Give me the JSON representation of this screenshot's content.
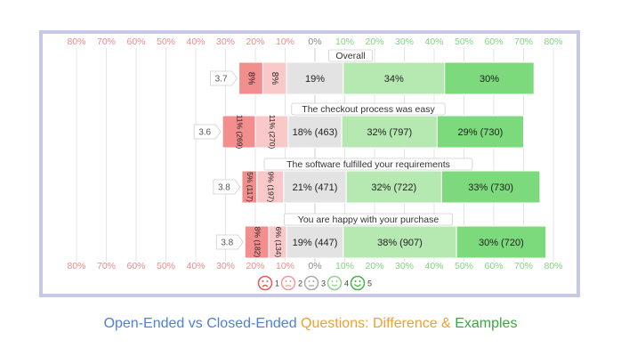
{
  "caption": {
    "part1": "Open-Ended vs Closed-Ended",
    "part2": "Questions: Difference &",
    "part3": "Examples"
  },
  "colors": {
    "neg": "#f27f7f",
    "neg_tick": "#ee8a8a",
    "pos_tick": "#7ed47e",
    "neutral_tick": "#888888",
    "s1": "#f28e8e",
    "s2": "#f9c9c9",
    "s3": "#e3e3e3",
    "s4": "#b6e8b2",
    "s5": "#7cd97c"
  },
  "chart_data": {
    "type": "bar",
    "subtype": "diverging-stacked-horizontal",
    "axis": {
      "min": -80,
      "max": 80,
      "ticks": [
        -80,
        -70,
        -60,
        -50,
        -40,
        -30,
        -20,
        -10,
        0,
        10,
        20,
        30,
        40,
        50,
        60,
        70,
        80
      ],
      "tick_labels": [
        "80%",
        "70%",
        "60%",
        "50%",
        "40%",
        "30%",
        "20%",
        "10%",
        "0%",
        "10%",
        "20%",
        "30%",
        "40%",
        "50%",
        "60%",
        "70%",
        "80%"
      ],
      "show_top": true,
      "show_bottom": true,
      "grid": true
    },
    "legend": {
      "placement": "bottom-center",
      "items": [
        {
          "label": "1",
          "face": "very-sad"
        },
        {
          "label": "2",
          "face": "sad"
        },
        {
          "label": "3",
          "face": "neutral"
        },
        {
          "label": "4",
          "face": "happy"
        },
        {
          "label": "5",
          "face": "very-happy"
        }
      ]
    },
    "rows": [
      {
        "question": "Overall",
        "score": "3.7",
        "values": [
          8,
          8,
          19,
          34,
          30
        ],
        "labels": [
          "8%",
          "8%",
          "19%",
          "34%",
          "30%"
        ]
      },
      {
        "question": "The checkout process was easy",
        "score": "3.6",
        "values": [
          11,
          11,
          18,
          32,
          29
        ],
        "labels": [
          "11% (269)",
          "11% (270)",
          "18% (463)",
          "32% (797)",
          "29% (730)"
        ]
      },
      {
        "question": "The software fulfilled your requirements",
        "score": "3.8",
        "values": [
          5,
          9,
          21,
          32,
          33
        ],
        "labels": [
          "5% (117)",
          "9% (197)",
          "21% (471)",
          "32% (722)",
          "33% (730)"
        ]
      },
      {
        "question": "You are happy with your purchase",
        "score": "3.8",
        "values": [
          8,
          6,
          19,
          38,
          30
        ],
        "labels": [
          "8% (182)",
          "6% (134)",
          "19% (447)",
          "38% (907)",
          "30% (720)"
        ]
      }
    ]
  }
}
